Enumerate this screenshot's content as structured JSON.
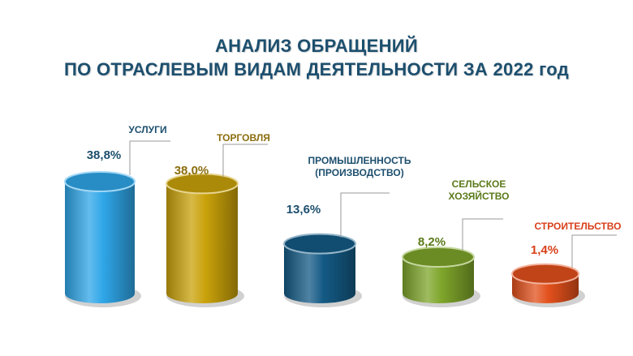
{
  "title": {
    "line1": "АНАЛИЗ ОБРАЩЕНИЙ",
    "line2": "ПО ОТРАСЛЕВЫМ ВИДАМ ДЕЯТЕЛЬНОСТИ ЗА 2022 год"
  },
  "chart_data": {
    "type": "bar",
    "style": "3d-cylinder",
    "categories": [
      [
        "УСЛУГИ"
      ],
      [
        "ТОРГОВЛЯ"
      ],
      [
        "ПРОМЫШЛЕННОСТЬ",
        "(ПРОИЗВОДСТВО)"
      ],
      [
        "СЕЛЬСКОЕ",
        "ХОЗЯЙСТВО"
      ],
      [
        "СТРОИТЕЛЬСТВО"
      ]
    ],
    "values": [
      38.8,
      38.0,
      13.6,
      8.2,
      1.4
    ],
    "value_labels": [
      "38,8%",
      "38,0%",
      "13,6%",
      "8,2%",
      "1,4%"
    ],
    "unit": "%",
    "colors": [
      "#2fa6e8",
      "#c9a20a",
      "#145a85",
      "#7ea52a",
      "#e2501c"
    ],
    "label_colors": [
      "#1d4f6e",
      "#8a6d0c",
      "#1d4f6e",
      "#5b7a1a",
      "#d8401a"
    ],
    "grid": false,
    "legend": "none"
  }
}
